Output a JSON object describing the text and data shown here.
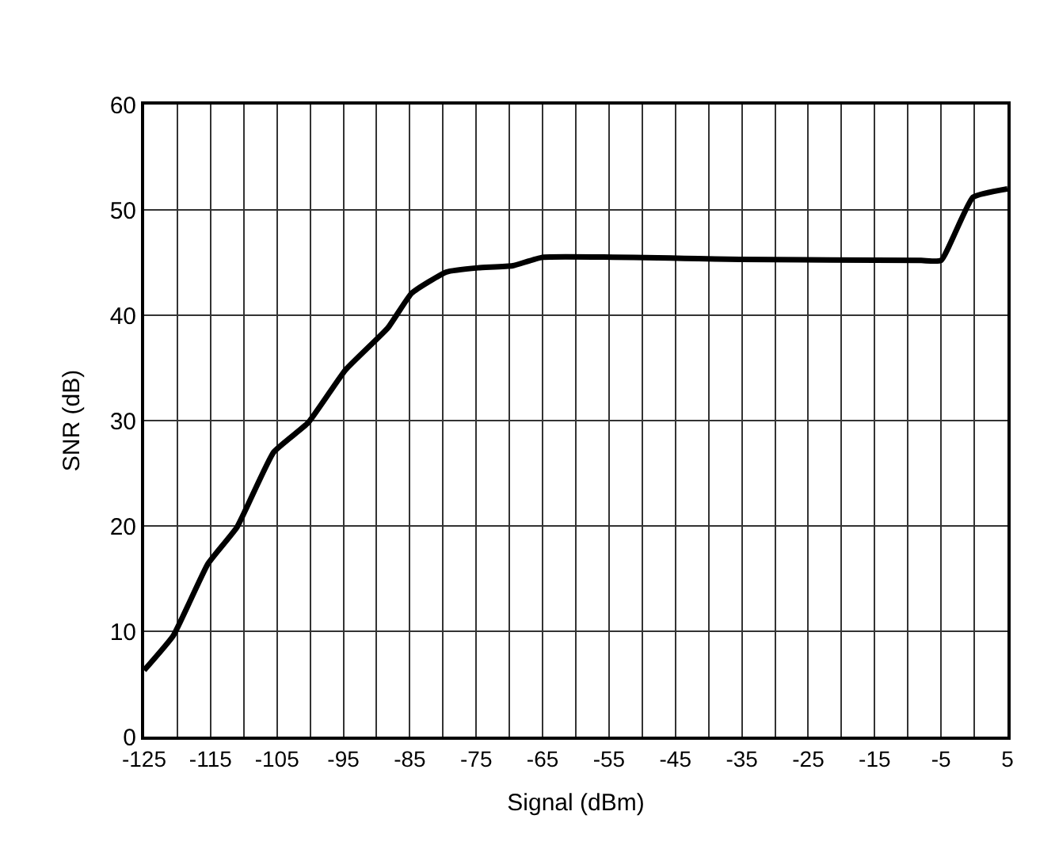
{
  "chart_data": {
    "type": "line",
    "xlabel": "Signal (dBm)",
    "ylabel": "SNR (dB)",
    "x": [
      -125,
      -120.6,
      -115.4,
      -111,
      -105.5,
      -100.3,
      -94.7,
      -88.3,
      -84.7,
      -79.5,
      -74.7,
      -69.5,
      -65,
      -35,
      -8,
      -5,
      -0.2,
      5
    ],
    "series": [
      {
        "color": "#000000",
        "values": [
          6.3,
          9.6,
          16.4,
          19.9,
          27,
          29.8,
          34.8,
          38.8,
          42.1,
          44.1,
          44.5,
          44.7,
          45.5,
          45.3,
          45.2,
          45.2,
          51.2,
          52
        ]
      }
    ],
    "xlim": [
      -125,
      5
    ],
    "ylim": [
      0,
      60
    ],
    "xticks": [
      -125,
      {
        "value": -120,
        "label": null
      },
      -115,
      {
        "value": -110,
        "label": null
      },
      -105,
      {
        "value": -100,
        "label": null
      },
      -95,
      {
        "value": -90,
        "label": null
      },
      -85,
      {
        "value": -80,
        "label": null
      },
      -75,
      {
        "value": -70,
        "label": null
      },
      -65,
      {
        "value": -60,
        "label": null
      },
      -55,
      {
        "value": -50,
        "label": null
      },
      -45,
      {
        "value": -40,
        "label": null
      },
      -35,
      {
        "value": -30,
        "label": null
      },
      -25,
      {
        "value": -20,
        "label": null
      },
      -15,
      {
        "value": -10,
        "label": null
      },
      -5,
      {
        "value": 0,
        "label": null
      },
      5
    ],
    "yticks": [
      0,
      10,
      20,
      30,
      40,
      50,
      60
    ],
    "grid": true,
    "marker": "none",
    "line_style": "solid"
  }
}
